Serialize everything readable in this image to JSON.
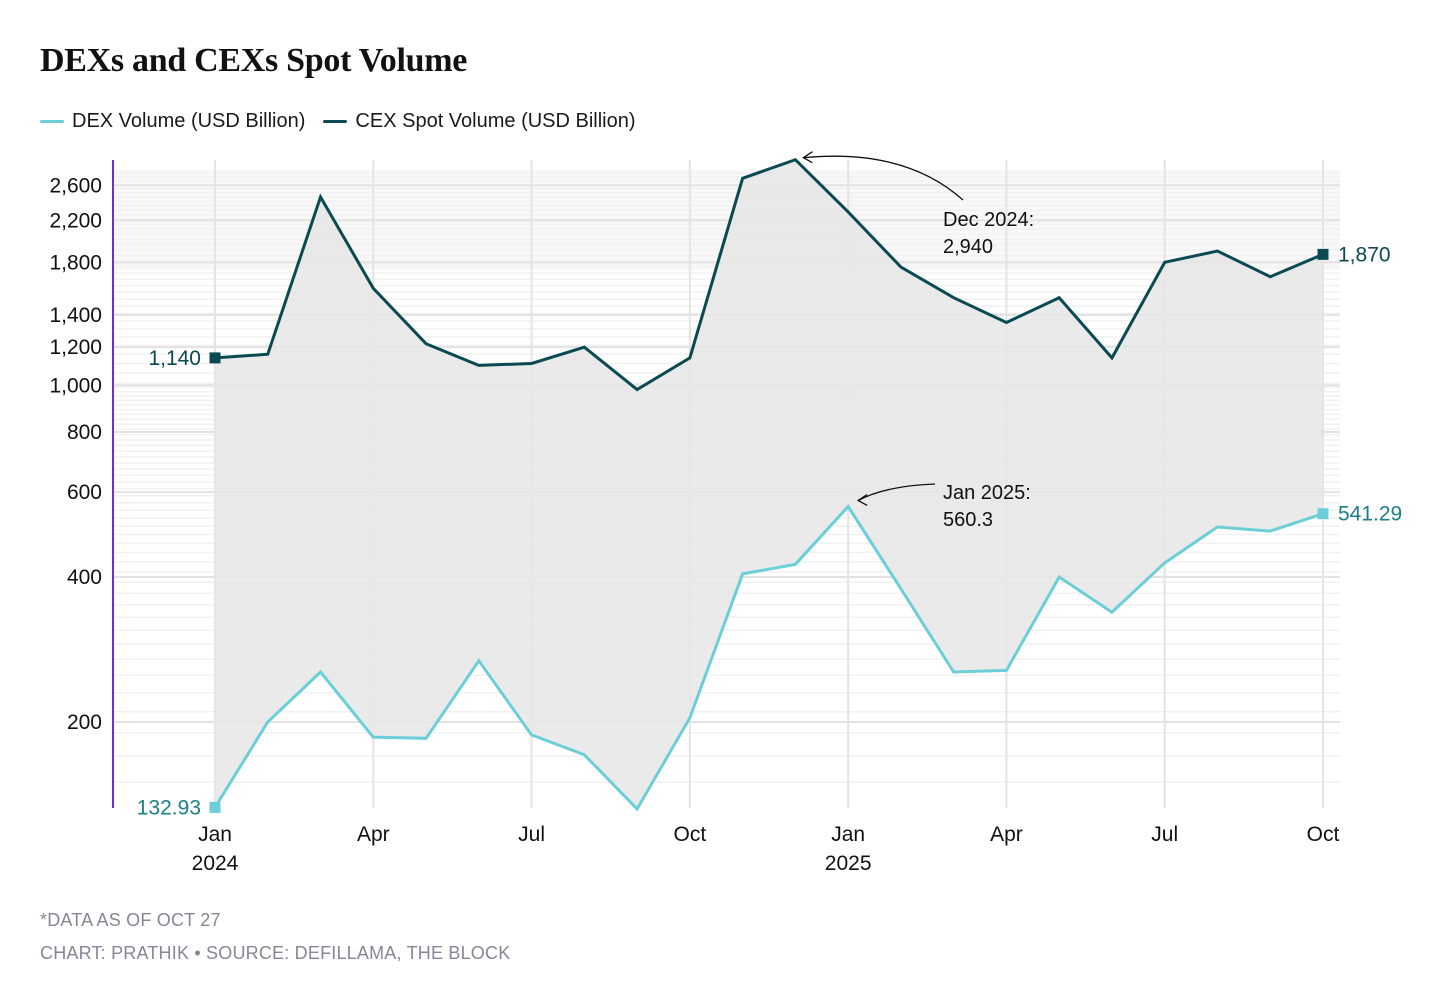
{
  "title": "DEXs and CEXs Spot Volume",
  "footer": {
    "note": "*DATA AS OF OCT 27",
    "credit": "CHART: PRATHIK • SOURCE: DEFILLAMA, THE BLOCK"
  },
  "colors": {
    "dex": "#6ccfd8",
    "cex": "#0b4a52",
    "dex_label": "#1a7f86",
    "cex_label": "#0b4a52",
    "fill": "#e6e6e6",
    "axis": "#6a2fd6",
    "grid": "#e4e4e4"
  },
  "chart_data": {
    "type": "line",
    "title": "DEXs and CEXs Spot Volume",
    "xlabel": "",
    "ylabel": "",
    "yscale": "log",
    "ylim": [
      130,
      2950
    ],
    "grid": true,
    "legend": "top-left",
    "x": [
      "Jan 2024",
      "Feb 2024",
      "Mar 2024",
      "Apr 2024",
      "May 2024",
      "Jun 2024",
      "Jul 2024",
      "Aug 2024",
      "Sep 2024",
      "Oct 2024",
      "Nov 2024",
      "Dec 2024",
      "Jan 2025",
      "Feb 2025",
      "Mar 2025",
      "Apr 2025",
      "May 2025",
      "Jun 2025",
      "Jul 2025",
      "Aug 2025",
      "Sep 2025",
      "Oct 2025"
    ],
    "x_ticks": [
      {
        "index": 0,
        "label": "Jan",
        "sub": "2024"
      },
      {
        "index": 3,
        "label": "Apr",
        "sub": ""
      },
      {
        "index": 6,
        "label": "Jul",
        "sub": ""
      },
      {
        "index": 9,
        "label": "Oct",
        "sub": ""
      },
      {
        "index": 12,
        "label": "Jan",
        "sub": "2025"
      },
      {
        "index": 15,
        "label": "Apr",
        "sub": ""
      },
      {
        "index": 18,
        "label": "Jul",
        "sub": ""
      },
      {
        "index": 21,
        "label": "Oct",
        "sub": ""
      }
    ],
    "y_ticks": [
      {
        "value": 200,
        "label": "200"
      },
      {
        "value": 400,
        "label": "400"
      },
      {
        "value": 600,
        "label": "600"
      },
      {
        "value": 800,
        "label": "800"
      },
      {
        "value": 1000,
        "label": "1,000"
      },
      {
        "value": 1200,
        "label": "1,200"
      },
      {
        "value": 1400,
        "label": "1,400"
      },
      {
        "value": 1800,
        "label": "1,800"
      },
      {
        "value": 2200,
        "label": "2,200"
      },
      {
        "value": 2600,
        "label": "2,600"
      }
    ],
    "series": [
      {
        "name": "DEX Volume (USD Billion)",
        "key": "dex",
        "values": [
          132.93,
          200,
          254,
          186,
          185,
          268,
          188,
          171,
          132,
          204,
          406,
          425,
          560.3,
          378,
          254,
          256,
          400,
          338,
          428,
          508,
          498,
          541.29
        ],
        "start_label": "132.93",
        "end_label": "541.29"
      },
      {
        "name": "CEX Spot Volume (USD Billion)",
        "key": "cex",
        "values": [
          1140,
          1160,
          2460,
          1590,
          1220,
          1100,
          1110,
          1200,
          980,
          1140,
          2690,
          2940,
          2290,
          1760,
          1520,
          1350,
          1520,
          1140,
          1800,
          1900,
          1680,
          1870
        ],
        "start_label": "1,140",
        "end_label": "1,870"
      }
    ],
    "annotations": [
      {
        "series": "cex",
        "index": 11,
        "line1": "Dec 2024:",
        "line2": "2,940"
      },
      {
        "series": "dex",
        "index": 12,
        "line1": "Jan 2025:",
        "line2": "560.3"
      }
    ]
  }
}
